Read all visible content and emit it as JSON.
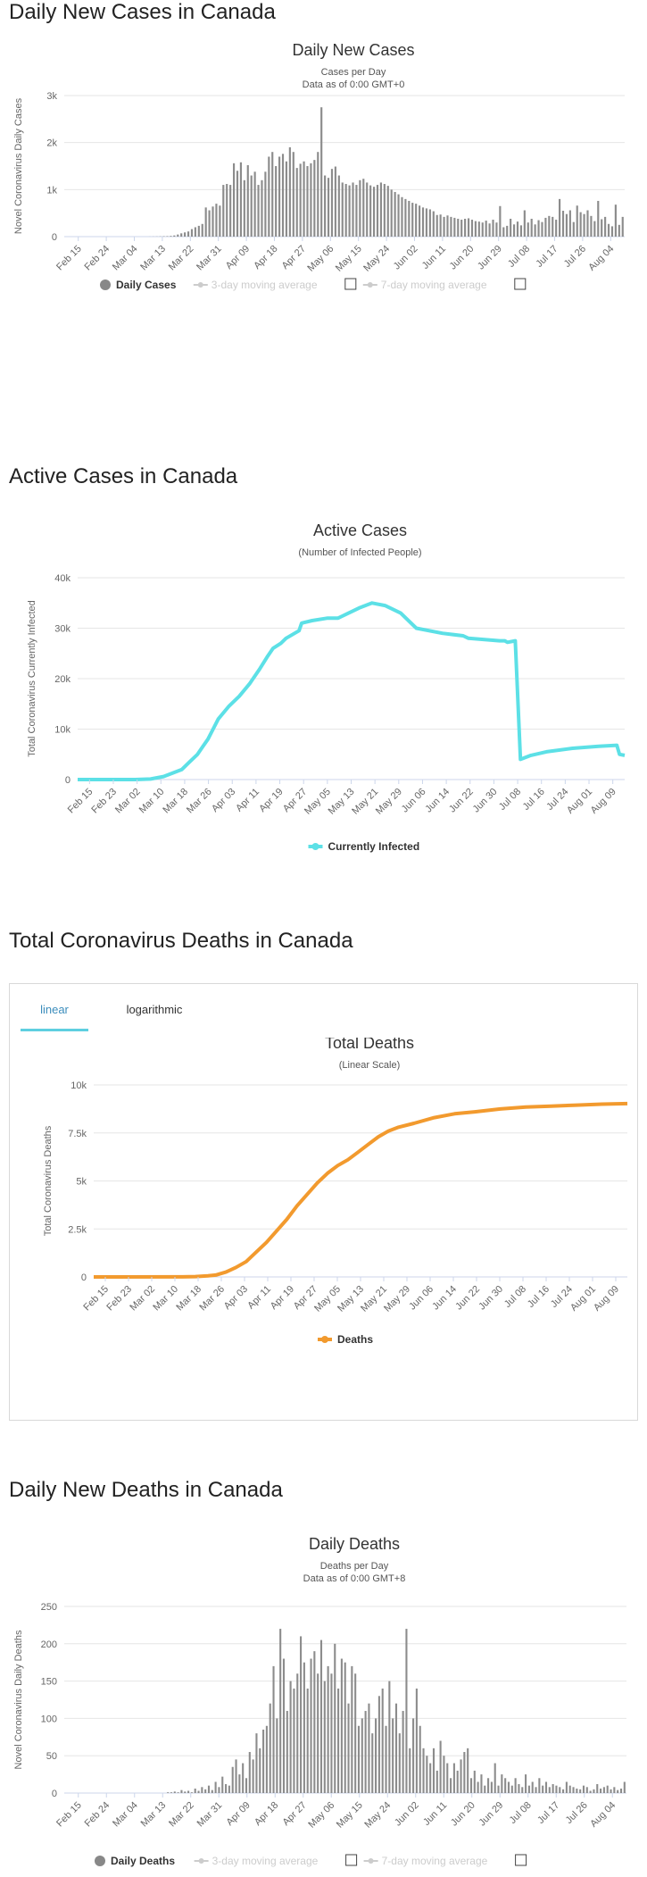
{
  "sections": {
    "daily_cases_title": "Daily New Cases in Canada",
    "active_title": "Active Cases in Canada",
    "deaths_title": "Total Coronavirus Deaths in Canada",
    "daily_deaths_title": "Daily New Deaths in Canada"
  },
  "tabs": {
    "linear": "linear",
    "logarithmic": "logarithmic",
    "active": "linear"
  },
  "colors": {
    "bar": "#8c8c8c",
    "active_line": "#5ce0e6",
    "deaths_line": "#f29a2e",
    "grid": "#e6e6e6",
    "tab_accent": "#5ecfe0"
  },
  "chart_data": [
    {
      "id": "daily_cases",
      "type": "bar",
      "title": "Daily New Cases",
      "subtitle": "Cases per Day",
      "subtitle2": "Data as of 0:00 GMT+0",
      "ylabel": "Novel Coronavirus Daily Cases",
      "ylim": [
        0,
        3000
      ],
      "yticks": [
        0,
        1000,
        2000,
        3000
      ],
      "ytick_labels": [
        "0",
        "1k",
        "2k",
        "3k"
      ],
      "xtick_labels": [
        "Feb 15",
        "Feb 24",
        "Mar 04",
        "Mar 13",
        "Mar 22",
        "Mar 31",
        "Apr 09",
        "Apr 18",
        "Apr 27",
        "May 06",
        "May 15",
        "May 24",
        "Jun 02",
        "Jun 11",
        "Jun 20",
        "Jun 29",
        "Jul 08",
        "Jul 17",
        "Jul 26",
        "Aug 04"
      ],
      "legend": [
        {
          "label": "Daily Cases",
          "enabled": true
        },
        {
          "label": "3-day moving average",
          "enabled": false
        },
        {
          "label": "7-day moving average",
          "enabled": false
        }
      ],
      "values": [
        0,
        0,
        0,
        0,
        0,
        0,
        0,
        0,
        0,
        0,
        0,
        0,
        0,
        0,
        0,
        0,
        0,
        0,
        0,
        0,
        0,
        0,
        0,
        0,
        1,
        2,
        3,
        5,
        8,
        10,
        15,
        25,
        45,
        70,
        90,
        110,
        160,
        200,
        230,
        270,
        620,
        560,
        640,
        700,
        660,
        1100,
        1120,
        1100,
        1560,
        1400,
        1580,
        1200,
        1520,
        1300,
        1380,
        1100,
        1200,
        1380,
        1700,
        1800,
        1500,
        1700,
        1760,
        1600,
        1900,
        1800,
        1460,
        1550,
        1600,
        1500,
        1560,
        1630,
        1800,
        2750,
        1300,
        1250,
        1440,
        1490,
        1300,
        1150,
        1120,
        1090,
        1150,
        1100,
        1200,
        1230,
        1150,
        1090,
        1060,
        1100,
        1150,
        1120,
        1080,
        1000,
        950,
        900,
        840,
        800,
        760,
        720,
        700,
        660,
        620,
        600,
        580,
        540,
        460,
        470,
        420,
        450,
        420,
        400,
        380,
        360,
        380,
        390,
        360,
        330,
        320,
        300,
        340,
        280,
        360,
        300,
        650,
        200,
        230,
        380,
        260,
        320,
        240,
        560,
        300,
        380,
        260,
        350,
        310,
        400,
        440,
        420,
        360,
        800,
        550,
        480,
        560,
        310,
        660,
        520,
        480,
        560,
        440,
        330,
        760,
        370,
        420,
        270,
        220,
        680,
        250,
        420
      ],
      "grid": true
    },
    {
      "id": "active",
      "type": "line",
      "title": "Active Cases",
      "subtitle": "(Number of Infected People)",
      "ylabel": "Total Coronavirus Currently Infected",
      "ylim": [
        0,
        40000
      ],
      "yticks": [
        0,
        10000,
        20000,
        30000,
        40000
      ],
      "ytick_labels": [
        "0",
        "10k",
        "20k",
        "30k",
        "40k"
      ],
      "xtick_labels": [
        "Feb 15",
        "Feb 23",
        "Mar 02",
        "Mar 10",
        "Mar 18",
        "Mar 26",
        "Apr 03",
        "Apr 11",
        "Apr 19",
        "Apr 27",
        "May 05",
        "May 13",
        "May 21",
        "May 29",
        "Jun 06",
        "Jun 14",
        "Jun 22",
        "Jun 30",
        "Jul 08",
        "Jul 16",
        "Jul 24",
        "Aug 01",
        "Aug 09"
      ],
      "series": [
        {
          "name": "Currently Infected"
        }
      ],
      "points": [
        [
          0,
          0
        ],
        [
          22,
          0
        ],
        [
          28,
          100
        ],
        [
          33,
          600
        ],
        [
          36,
          1200
        ],
        [
          40,
          2000
        ],
        [
          43,
          3500
        ],
        [
          46,
          5000
        ],
        [
          48,
          6500
        ],
        [
          50,
          8000
        ],
        [
          52,
          10000
        ],
        [
          54,
          12000
        ],
        [
          58,
          14500
        ],
        [
          62,
          16500
        ],
        [
          66,
          19000
        ],
        [
          70,
          22000
        ],
        [
          73,
          24500
        ],
        [
          75,
          26000
        ],
        [
          78,
          27000
        ],
        [
          80,
          28000
        ],
        [
          85,
          29500
        ],
        [
          86,
          31000
        ],
        [
          90,
          31500
        ],
        [
          96,
          32000
        ],
        [
          100,
          32000
        ],
        [
          104,
          33000
        ],
        [
          108,
          34000
        ],
        [
          113,
          35000
        ],
        [
          118,
          34500
        ],
        [
          124,
          33000
        ],
        [
          130,
          30000
        ],
        [
          140,
          29000
        ],
        [
          148,
          28500
        ],
        [
          150,
          28000
        ],
        [
          162,
          27500
        ],
        [
          164,
          27500
        ],
        [
          165,
          27200
        ],
        [
          168,
          27500
        ],
        [
          170,
          4000
        ],
        [
          174,
          4800
        ],
        [
          180,
          5500
        ],
        [
          190,
          6200
        ],
        [
          200,
          6600
        ],
        [
          207,
          6800
        ],
        [
          208,
          5000
        ],
        [
          210,
          4800
        ]
      ],
      "grid": true
    },
    {
      "id": "total_deaths",
      "type": "line",
      "title": "Total Deaths",
      "subtitle": "(Linear Scale)",
      "ylabel": "Total Coronavirus Deaths",
      "ylim": [
        0,
        10000
      ],
      "yticks": [
        0,
        2500,
        5000,
        7500,
        10000
      ],
      "ytick_labels": [
        "0",
        "2.5k",
        "5k",
        "7.5k",
        "10k"
      ],
      "xtick_labels": [
        "Feb 15",
        "Feb 23",
        "Mar 02",
        "Mar 10",
        "Mar 18",
        "Mar 26",
        "Apr 03",
        "Apr 11",
        "Apr 19",
        "Apr 27",
        "May 05",
        "May 13",
        "May 21",
        "May 29",
        "Jun 06",
        "Jun 14",
        "Jun 22",
        "Jun 30",
        "Jul 08",
        "Jul 16",
        "Jul 24",
        "Aug 01",
        "Aug 09"
      ],
      "series": [
        {
          "name": "Deaths"
        }
      ],
      "points": [
        [
          0,
          0
        ],
        [
          35,
          5
        ],
        [
          40,
          20
        ],
        [
          45,
          60
        ],
        [
          48,
          100
        ],
        [
          52,
          250
        ],
        [
          56,
          500
        ],
        [
          60,
          800
        ],
        [
          64,
          1300
        ],
        [
          68,
          1800
        ],
        [
          72,
          2400
        ],
        [
          76,
          3000
        ],
        [
          80,
          3700
        ],
        [
          84,
          4300
        ],
        [
          88,
          4900
        ],
        [
          92,
          5400
        ],
        [
          96,
          5800
        ],
        [
          100,
          6100
        ],
        [
          104,
          6500
        ],
        [
          108,
          6900
        ],
        [
          112,
          7300
        ],
        [
          116,
          7600
        ],
        [
          120,
          7800
        ],
        [
          126,
          8000
        ],
        [
          134,
          8300
        ],
        [
          142,
          8500
        ],
        [
          150,
          8600
        ],
        [
          160,
          8750
        ],
        [
          170,
          8850
        ],
        [
          180,
          8900
        ],
        [
          190,
          8950
        ],
        [
          200,
          9000
        ],
        [
          210,
          9030
        ]
      ],
      "grid": true
    },
    {
      "id": "daily_deaths",
      "type": "bar",
      "title": "Daily Deaths",
      "subtitle": "Deaths per Day",
      "subtitle2": "Data as of 0:00 GMT+8",
      "ylabel": "Novel Coronavirus Daily Deaths",
      "ylim": [
        0,
        250
      ],
      "yticks": [
        0,
        50,
        100,
        150,
        200,
        250
      ],
      "ytick_labels": [
        "0",
        "50",
        "100",
        "150",
        "200",
        "250"
      ],
      "xtick_labels": [
        "Feb 15",
        "Feb 24",
        "Mar 04",
        "Mar 13",
        "Mar 22",
        "Mar 31",
        "Apr 09",
        "Apr 18",
        "Apr 27",
        "May 06",
        "May 15",
        "May 24",
        "Jun 02",
        "Jun 11",
        "Jun 20",
        "Jun 29",
        "Jul 08",
        "Jul 17",
        "Jul 26",
        "Aug 04"
      ],
      "legend": [
        {
          "label": "Daily Deaths",
          "enabled": true
        },
        {
          "label": "3-day moving average",
          "enabled": false
        },
        {
          "label": "7-day moving average",
          "enabled": false
        }
      ],
      "values": [
        0,
        0,
        0,
        0,
        0,
        0,
        0,
        0,
        0,
        0,
        0,
        0,
        0,
        0,
        0,
        0,
        0,
        0,
        0,
        0,
        0,
        0,
        0,
        0,
        0,
        0,
        0,
        0,
        0,
        0,
        1,
        1,
        2,
        1,
        4,
        2,
        3,
        1,
        6,
        3,
        8,
        5,
        10,
        4,
        15,
        8,
        22,
        12,
        10,
        35,
        45,
        25,
        40,
        20,
        55,
        45,
        80,
        60,
        85,
        90,
        120,
        170,
        100,
        220,
        180,
        110,
        150,
        140,
        160,
        210,
        175,
        140,
        180,
        190,
        160,
        205,
        150,
        170,
        160,
        200,
        140,
        180,
        175,
        120,
        170,
        160,
        90,
        100,
        110,
        120,
        80,
        100,
        130,
        140,
        90,
        150,
        100,
        120,
        80,
        110,
        220,
        60,
        100,
        140,
        90,
        60,
        50,
        40,
        60,
        30,
        70,
        50,
        40,
        20,
        40,
        30,
        45,
        55,
        60,
        20,
        30,
        15,
        25,
        10,
        20,
        15,
        40,
        10,
        25,
        20,
        15,
        10,
        20,
        12,
        8,
        25,
        10,
        15,
        8,
        20,
        10,
        15,
        8,
        12,
        10,
        8,
        5,
        15,
        10,
        8,
        6,
        5,
        10,
        8,
        3,
        5,
        12,
        6,
        8,
        10,
        5,
        8,
        4,
        6,
        15
      ],
      "grid": true
    }
  ]
}
